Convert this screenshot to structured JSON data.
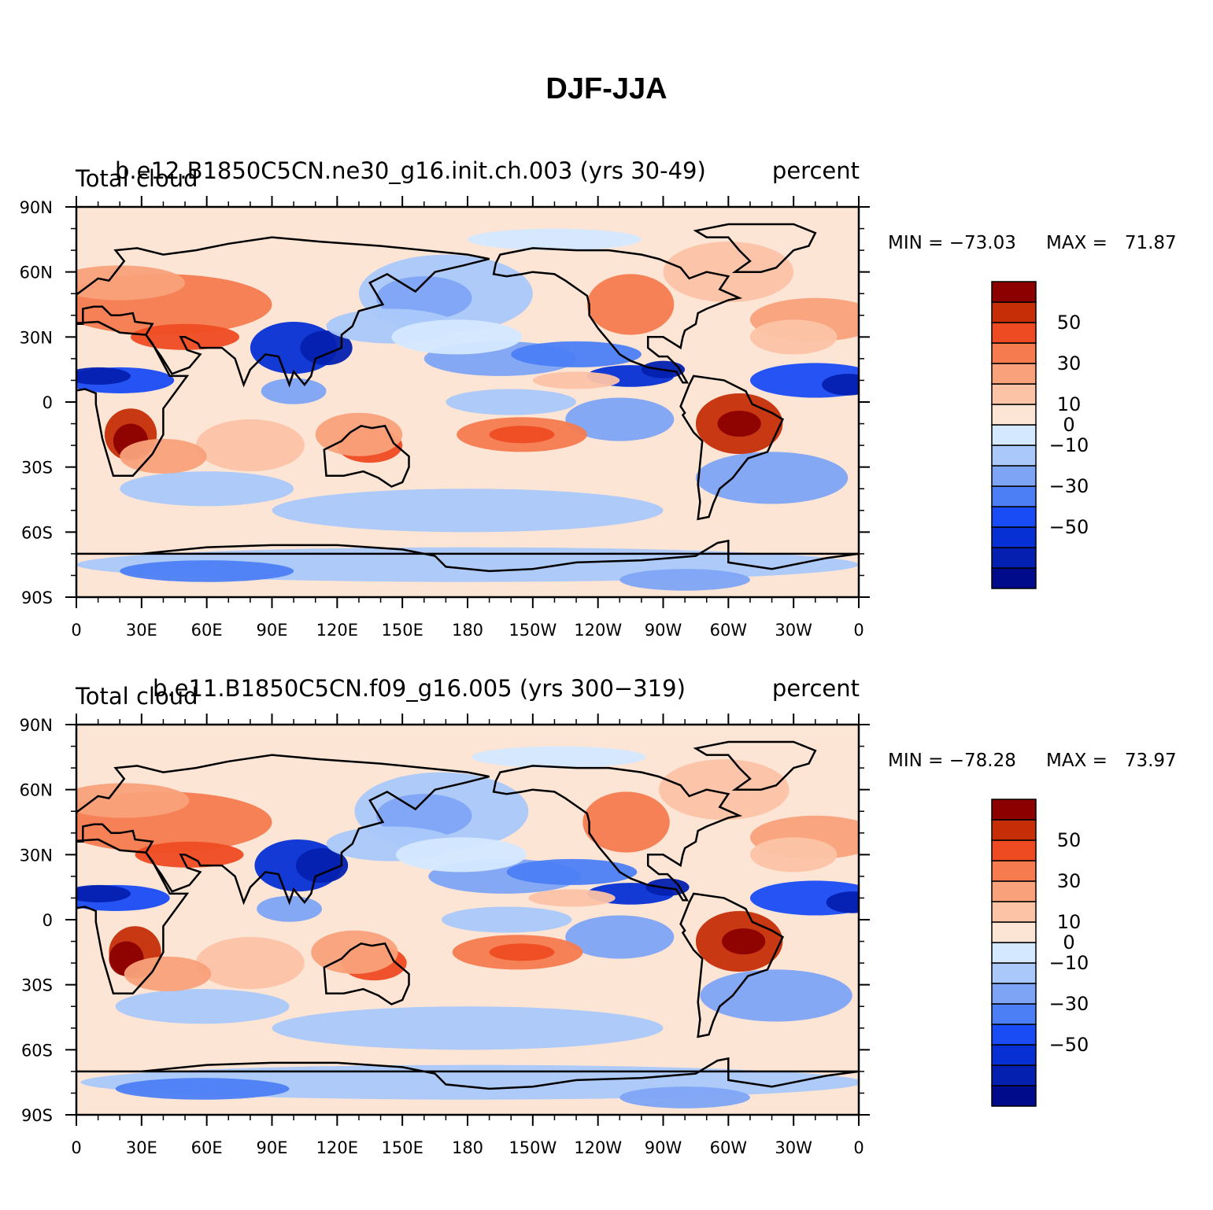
{
  "title": "DJF-JJA",
  "colorbar": {
    "colors": [
      "#000b8c",
      "#0420b0",
      "#0630d4",
      "#1a4cf5",
      "#4c7ef5",
      "#7ea4f5",
      "#aac8fa",
      "#d4e8ff",
      "#fde5d6",
      "#fcc3a6",
      "#f9a17a",
      "#f67b4f",
      "#ef4b22",
      "#c52e07",
      "#8c0000"
    ],
    "labels": [
      "−50",
      "−30",
      "−10",
      "0",
      "10",
      "30",
      "50"
    ]
  },
  "chart_data": [
    {
      "type": "heatmap",
      "title": "b.e12.B1850C5CN.ne30_g16.init.ch.003 (yrs 30-49)",
      "left_label": "Total cloud",
      "right_label": "percent",
      "min_label": "MIN = −73.03",
      "max_label": "MAX =   71.87",
      "min": -73.03,
      "max": 71.87,
      "x_ticks": [
        "0",
        "30E",
        "60E",
        "90E",
        "120E",
        "150E",
        "180",
        "150W",
        "120W",
        "90W",
        "60W",
        "30W",
        "0"
      ],
      "y_ticks": [
        "90N",
        "60N",
        "30N",
        "0",
        "30S",
        "60S",
        "90S"
      ],
      "colorbar_levels": [
        -60,
        -50,
        -40,
        -30,
        -20,
        -10,
        -5,
        0,
        5,
        10,
        20,
        30,
        40,
        50,
        60
      ]
    },
    {
      "type": "heatmap",
      "title": "b.e11.B1850C5CN.f09_g16.005 (yrs 300−319)",
      "left_label": "Total cloud",
      "right_label": "percent",
      "min_label": "MIN = −78.28",
      "max_label": "MAX =   73.97",
      "min": -78.28,
      "max": 73.97,
      "x_ticks": [
        "0",
        "30E",
        "60E",
        "90E",
        "120E",
        "150E",
        "180",
        "150W",
        "120W",
        "90W",
        "60W",
        "30W",
        "0"
      ],
      "y_ticks": [
        "90N",
        "60N",
        "30N",
        "0",
        "30S",
        "60S",
        "90S"
      ],
      "colorbar_levels": [
        -60,
        -50,
        -40,
        -30,
        -20,
        -10,
        -5,
        0,
        5,
        10,
        20,
        30,
        40,
        50,
        60
      ]
    }
  ]
}
